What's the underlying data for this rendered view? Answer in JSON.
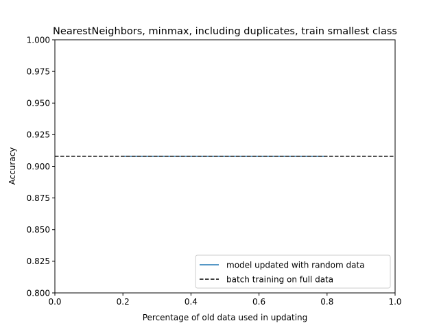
{
  "chart_data": {
    "type": "line",
    "title": "NearestNeighbors, minmax, including duplicates, train smallest class",
    "xlabel": "Percentage of old data used in updating",
    "ylabel": "Accuracy",
    "xlim": [
      0.0,
      1.0
    ],
    "ylim": [
      0.8,
      1.0
    ],
    "x_ticks": [
      0.0,
      0.2,
      0.4,
      0.6,
      0.8,
      1.0
    ],
    "x_tick_labels": [
      "0.0",
      "0.2",
      "0.4",
      "0.6",
      "0.8",
      "1.0"
    ],
    "y_ticks": [
      0.8,
      0.825,
      0.85,
      0.875,
      0.9,
      0.925,
      0.95,
      0.975,
      1.0
    ],
    "y_tick_labels": [
      "0.800",
      "0.825",
      "0.850",
      "0.875",
      "0.900",
      "0.925",
      "0.950",
      "0.975",
      "1.000"
    ],
    "grid": false,
    "legend_position": "lower-right",
    "series": [
      {
        "name": "model updated with random data",
        "style": "solid",
        "color": "#1f77b4",
        "x": [
          0.2,
          0.3,
          0.4,
          0.5,
          0.6,
          0.7,
          0.8
        ],
        "y": [
          0.908,
          0.908,
          0.908,
          0.908,
          0.908,
          0.908,
          0.908
        ]
      },
      {
        "name": "batch training on full data",
        "style": "dashed",
        "color": "#000000",
        "type": "hline",
        "y": 0.908
      }
    ]
  }
}
